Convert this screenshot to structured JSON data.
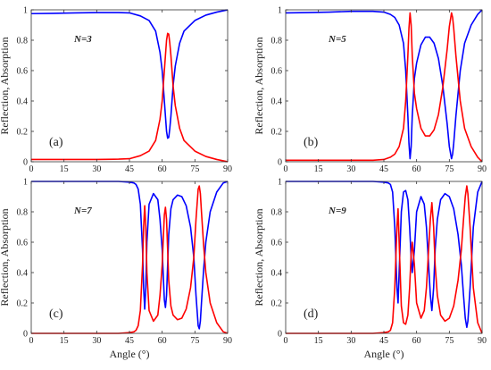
{
  "figure": {
    "shared": {
      "xlabel": "Angle (°)",
      "ylabel": "Reflection, Absorption",
      "x_ticks": [
        0,
        15,
        30,
        45,
        60,
        75,
        90
      ],
      "y_ticks": [
        0,
        0.2,
        0.4,
        0.6,
        0.8,
        1
      ],
      "xlim": [
        0,
        90
      ],
      "ylim": [
        0,
        1
      ],
      "colors": {
        "reflection": "#0000ff",
        "absorption": "#ff0000"
      }
    }
  },
  "chart_data": [
    {
      "type": "line",
      "panel_label": "(a)",
      "annotation": "N=3",
      "xlim": [
        0,
        90
      ],
      "ylim": [
        0,
        1
      ],
      "series": [
        {
          "color": "#0000ff",
          "x": [
            0,
            10,
            20,
            30,
            40,
            45,
            50,
            54,
            57,
            59,
            60,
            61,
            61.5,
            62,
            62.5,
            63,
            63.5,
            64,
            65,
            66,
            68,
            70,
            75,
            80,
            85,
            90
          ],
          "y": [
            0.975,
            0.977,
            0.98,
            0.982,
            0.982,
            0.98,
            0.96,
            0.93,
            0.86,
            0.72,
            0.6,
            0.4,
            0.3,
            0.2,
            0.155,
            0.16,
            0.22,
            0.3,
            0.5,
            0.63,
            0.78,
            0.86,
            0.93,
            0.965,
            0.985,
            1.0
          ]
        },
        {
          "color": "#ff0000",
          "x": [
            0,
            10,
            20,
            30,
            40,
            45,
            50,
            54,
            57,
            59,
            60,
            61,
            61.5,
            62,
            62.5,
            63,
            63.5,
            64,
            65,
            66,
            68,
            70,
            75,
            80,
            85,
            90
          ],
          "y": [
            0.015,
            0.015,
            0.015,
            0.015,
            0.017,
            0.02,
            0.04,
            0.07,
            0.14,
            0.28,
            0.4,
            0.6,
            0.7,
            0.8,
            0.845,
            0.84,
            0.78,
            0.7,
            0.5,
            0.37,
            0.22,
            0.14,
            0.07,
            0.035,
            0.015,
            0.0
          ]
        }
      ]
    },
    {
      "type": "line",
      "panel_label": "(b)",
      "annotation": "N=5",
      "xlim": [
        0,
        90
      ],
      "ylim": [
        0,
        1
      ],
      "series": [
        {
          "color": "#0000ff",
          "x": [
            0,
            10,
            20,
            30,
            40,
            45,
            48,
            50,
            52,
            54,
            55,
            56,
            56.5,
            57,
            57.5,
            58,
            59,
            60,
            62,
            64,
            66,
            68,
            70,
            72,
            74,
            75,
            76,
            76.5,
            77,
            78,
            80,
            82,
            85,
            88,
            90
          ],
          "y": [
            0.98,
            0.982,
            0.985,
            0.99,
            0.99,
            0.985,
            0.97,
            0.95,
            0.9,
            0.78,
            0.6,
            0.3,
            0.12,
            0.02,
            0.1,
            0.3,
            0.55,
            0.65,
            0.77,
            0.82,
            0.82,
            0.78,
            0.68,
            0.5,
            0.25,
            0.1,
            0.02,
            0.05,
            0.12,
            0.3,
            0.6,
            0.78,
            0.9,
            0.97,
            1.0
          ]
        },
        {
          "color": "#ff0000",
          "x": [
            0,
            10,
            20,
            30,
            40,
            45,
            48,
            50,
            52,
            54,
            55,
            56,
            56.5,
            57,
            57.5,
            58,
            59,
            60,
            62,
            64,
            66,
            68,
            70,
            72,
            74,
            75,
            76,
            76.5,
            77,
            78,
            80,
            82,
            85,
            88,
            90
          ],
          "y": [
            0.01,
            0.01,
            0.01,
            0.01,
            0.01,
            0.015,
            0.03,
            0.05,
            0.1,
            0.22,
            0.4,
            0.7,
            0.88,
            0.98,
            0.9,
            0.7,
            0.45,
            0.35,
            0.22,
            0.17,
            0.17,
            0.21,
            0.31,
            0.49,
            0.74,
            0.89,
            0.98,
            0.95,
            0.88,
            0.7,
            0.4,
            0.22,
            0.1,
            0.03,
            0.0
          ]
        }
      ]
    },
    {
      "type": "line",
      "panel_label": "(c)",
      "annotation": "N=7",
      "xlim": [
        0,
        90
      ],
      "ylim": [
        0,
        1
      ],
      "series": [
        {
          "color": "#0000ff",
          "x": [
            0,
            20,
            40,
            45,
            47,
            48,
            49,
            50,
            51,
            51.5,
            52,
            52.5,
            53,
            54,
            56,
            58,
            59,
            60,
            60.5,
            61,
            61.5,
            62,
            62.5,
            63,
            64,
            65,
            67,
            69,
            71,
            73,
            74.5,
            75.5,
            76.5,
            77,
            77.5,
            78,
            79,
            80,
            82,
            85,
            88,
            90
          ],
          "y": [
            1.0,
            1.0,
            1.0,
            0.995,
            0.99,
            0.98,
            0.95,
            0.85,
            0.55,
            0.3,
            0.16,
            0.3,
            0.6,
            0.85,
            0.92,
            0.88,
            0.75,
            0.55,
            0.38,
            0.22,
            0.17,
            0.25,
            0.45,
            0.65,
            0.82,
            0.88,
            0.91,
            0.9,
            0.84,
            0.7,
            0.5,
            0.25,
            0.05,
            0.03,
            0.08,
            0.2,
            0.42,
            0.6,
            0.8,
            0.93,
            0.99,
            1.0
          ]
        },
        {
          "color": "#ff0000",
          "x": [
            0,
            20,
            40,
            45,
            47,
            48,
            49,
            50,
            51,
            51.5,
            52,
            52.5,
            53,
            54,
            56,
            58,
            59,
            60,
            60.5,
            61,
            61.5,
            62,
            62.5,
            63,
            64,
            65,
            67,
            69,
            71,
            73,
            74.5,
            75.5,
            76.5,
            77,
            77.5,
            78,
            79,
            80,
            82,
            85,
            88,
            90
          ],
          "y": [
            0.0,
            0.0,
            0.0,
            0.005,
            0.01,
            0.02,
            0.05,
            0.15,
            0.45,
            0.7,
            0.84,
            0.7,
            0.4,
            0.15,
            0.08,
            0.12,
            0.25,
            0.45,
            0.62,
            0.78,
            0.83,
            0.75,
            0.55,
            0.35,
            0.18,
            0.12,
            0.09,
            0.1,
            0.16,
            0.3,
            0.5,
            0.75,
            0.95,
            0.97,
            0.92,
            0.8,
            0.58,
            0.4,
            0.2,
            0.07,
            0.01,
            0.0
          ]
        }
      ]
    },
    {
      "type": "line",
      "panel_label": "(d)",
      "annotation": "N=9",
      "xlim": [
        0,
        90
      ],
      "ylim": [
        0,
        1
      ],
      "series": [
        {
          "color": "#0000ff",
          "x": [
            0,
            20,
            40,
            45,
            47,
            48,
            49,
            50,
            50.5,
            51,
            51.5,
            52,
            53,
            54,
            55,
            56,
            56.8,
            57.5,
            58,
            59,
            60,
            62,
            63.5,
            64.5,
            65.5,
            66.3,
            67,
            67.8,
            68.5,
            69.5,
            71,
            73,
            75,
            77,
            79,
            80.5,
            81.5,
            82.3,
            83,
            83.5,
            84.5,
            86,
            88,
            90
          ],
          "y": [
            1.0,
            1.0,
            1.0,
            0.995,
            0.99,
            0.98,
            0.93,
            0.7,
            0.5,
            0.3,
            0.2,
            0.4,
            0.8,
            0.93,
            0.94,
            0.88,
            0.7,
            0.5,
            0.4,
            0.55,
            0.8,
            0.9,
            0.85,
            0.7,
            0.45,
            0.25,
            0.15,
            0.3,
            0.55,
            0.75,
            0.88,
            0.92,
            0.9,
            0.82,
            0.65,
            0.45,
            0.25,
            0.1,
            0.04,
            0.08,
            0.3,
            0.7,
            0.93,
            1.0
          ]
        },
        {
          "color": "#ff0000",
          "x": [
            0,
            20,
            40,
            45,
            47,
            48,
            49,
            50,
            50.5,
            51,
            51.5,
            52,
            53,
            54,
            55,
            56,
            56.8,
            57.5,
            58,
            59,
            60,
            62,
            63.5,
            64.5,
            65.5,
            66.3,
            67,
            67.8,
            68.5,
            69.5,
            71,
            73,
            75,
            77,
            79,
            80.5,
            81.5,
            82.3,
            83,
            83.5,
            84.5,
            86,
            88,
            90
          ],
          "y": [
            0.0,
            0.0,
            0.0,
            0.005,
            0.01,
            0.02,
            0.07,
            0.3,
            0.5,
            0.7,
            0.82,
            0.6,
            0.18,
            0.07,
            0.06,
            0.12,
            0.3,
            0.52,
            0.6,
            0.45,
            0.2,
            0.1,
            0.15,
            0.3,
            0.55,
            0.75,
            0.86,
            0.7,
            0.45,
            0.25,
            0.12,
            0.08,
            0.1,
            0.18,
            0.35,
            0.55,
            0.75,
            0.9,
            0.97,
            0.92,
            0.7,
            0.3,
            0.07,
            0.0
          ]
        }
      ]
    }
  ]
}
